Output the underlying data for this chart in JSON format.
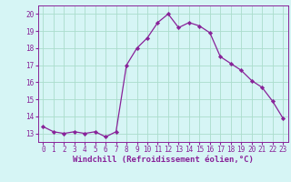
{
  "x": [
    0,
    1,
    2,
    3,
    4,
    5,
    6,
    7,
    8,
    9,
    10,
    11,
    12,
    13,
    14,
    15,
    16,
    17,
    18,
    19,
    20,
    21,
    22,
    23
  ],
  "y": [
    13.4,
    13.1,
    13.0,
    13.1,
    13.0,
    13.1,
    12.8,
    13.1,
    17.0,
    18.0,
    18.6,
    19.5,
    20.0,
    19.2,
    19.5,
    19.3,
    18.9,
    17.5,
    17.1,
    16.7,
    16.1,
    15.7,
    14.9,
    13.9
  ],
  "line_color": "#882299",
  "marker": "D",
  "marker_size": 2.2,
  "bg_color": "#d6f5f5",
  "grid_color": "#aaddcc",
  "xlabel": "Windchill (Refroidissement éolien,°C)",
  "xlabel_color": "#882299",
  "tick_color": "#882299",
  "ylim": [
    12.5,
    20.5
  ],
  "xlim": [
    -0.5,
    23.5
  ],
  "yticks": [
    13,
    14,
    15,
    16,
    17,
    18,
    19,
    20
  ],
  "xticks": [
    0,
    1,
    2,
    3,
    4,
    5,
    6,
    7,
    8,
    9,
    10,
    11,
    12,
    13,
    14,
    15,
    16,
    17,
    18,
    19,
    20,
    21,
    22,
    23
  ],
  "label_fontsize": 6.5,
  "tick_fontsize": 5.5
}
